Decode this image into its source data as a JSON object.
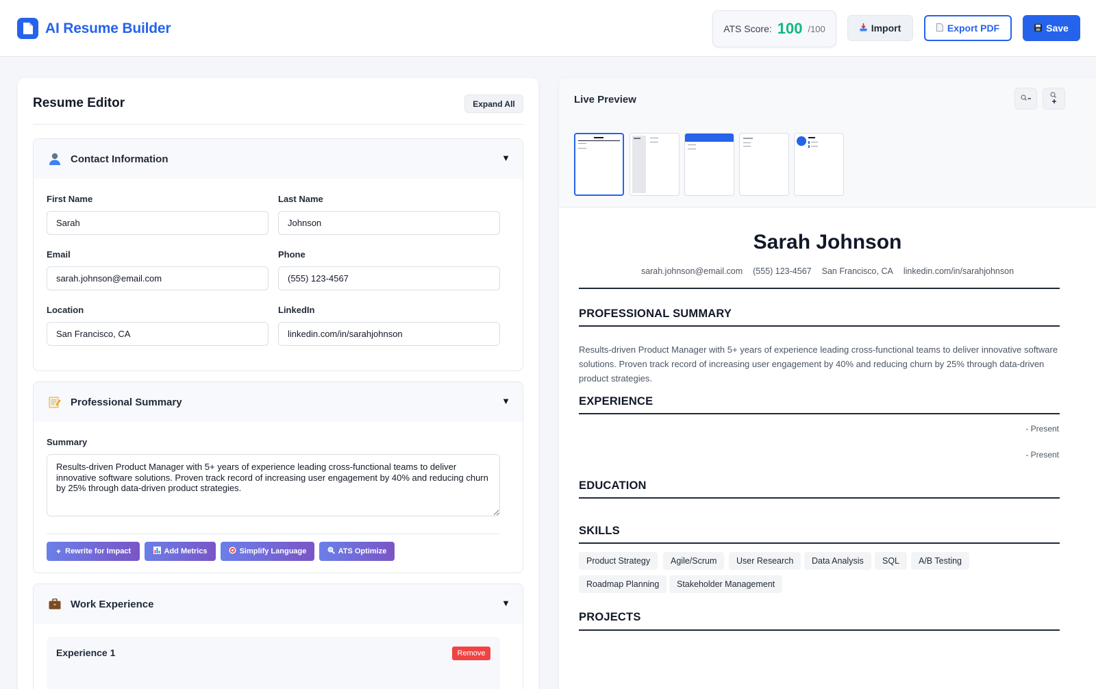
{
  "header": {
    "app_title": "AI Resume Builder",
    "ats_label": "ATS Score:",
    "ats_value": "100",
    "ats_max": "/100",
    "import_label": "Import",
    "export_label": "Export PDF",
    "save_label": "Save"
  },
  "editor": {
    "title": "Resume Editor",
    "expand_label": "Expand All",
    "contact": {
      "title": "Contact Information",
      "icon": "person-icon",
      "first_name_label": "First Name",
      "first_name": "Sarah",
      "last_name_label": "Last Name",
      "last_name": "Johnson",
      "email_label": "Email",
      "email": "sarah.johnson@email.com",
      "phone_label": "Phone",
      "phone": "(555) 123-4567",
      "location_label": "Location",
      "location": "San Francisco, CA",
      "linkedin_label": "LinkedIn",
      "linkedin": "linkedin.com/in/sarahjohnson"
    },
    "summary": {
      "title": "Professional Summary",
      "icon": "memo-icon",
      "label": "Summary",
      "text": "Results-driven Product Manager with 5+ years of experience leading cross-functional teams to deliver innovative software solutions. Proven track record of increasing user engagement by 40% and reducing churn by 25% through data-driven product strategies.",
      "ai_buttons": {
        "rewrite": "Rewrite for Impact",
        "metrics": "Add Metrics",
        "simplify": "Simplify Language",
        "ats": "ATS Optimize"
      }
    },
    "experience": {
      "title": "Work Experience",
      "icon": "briefcase-icon",
      "item_title": "Experience 1",
      "remove_label": "Remove"
    }
  },
  "preview": {
    "title": "Live Preview",
    "name": "Sarah Johnson",
    "email": "sarah.johnson@email.com",
    "phone": "(555) 123-4567",
    "location": "San Francisco, CA",
    "linkedin": "linkedin.com/in/sarahjohnson",
    "summary_heading": "PROFESSIONAL SUMMARY",
    "summary_text": "Results-driven Product Manager with 5+ years of experience leading cross-functional teams to deliver innovative software solutions. Proven track record of increasing user engagement by 40% and reducing churn by 25% through data-driven product strategies.",
    "experience_heading": "EXPERIENCE",
    "present_1": "- Present",
    "present_2": "- Present",
    "education_heading": "EDUCATION",
    "skills_heading": "SKILLS",
    "skills": [
      "Product Strategy",
      "Agile/Scrum",
      "User Research",
      "Data Analysis",
      "SQL",
      "A/B Testing",
      "Roadmap Planning",
      "Stakeholder Management"
    ],
    "projects_heading": "PROJECTS"
  },
  "colors": {
    "accent": "#2563eb",
    "ats_score": "#10b981",
    "remove": "#ef4444",
    "ai_gradient_start": "#6b7fe8",
    "ai_gradient_end": "#7a55c6"
  }
}
